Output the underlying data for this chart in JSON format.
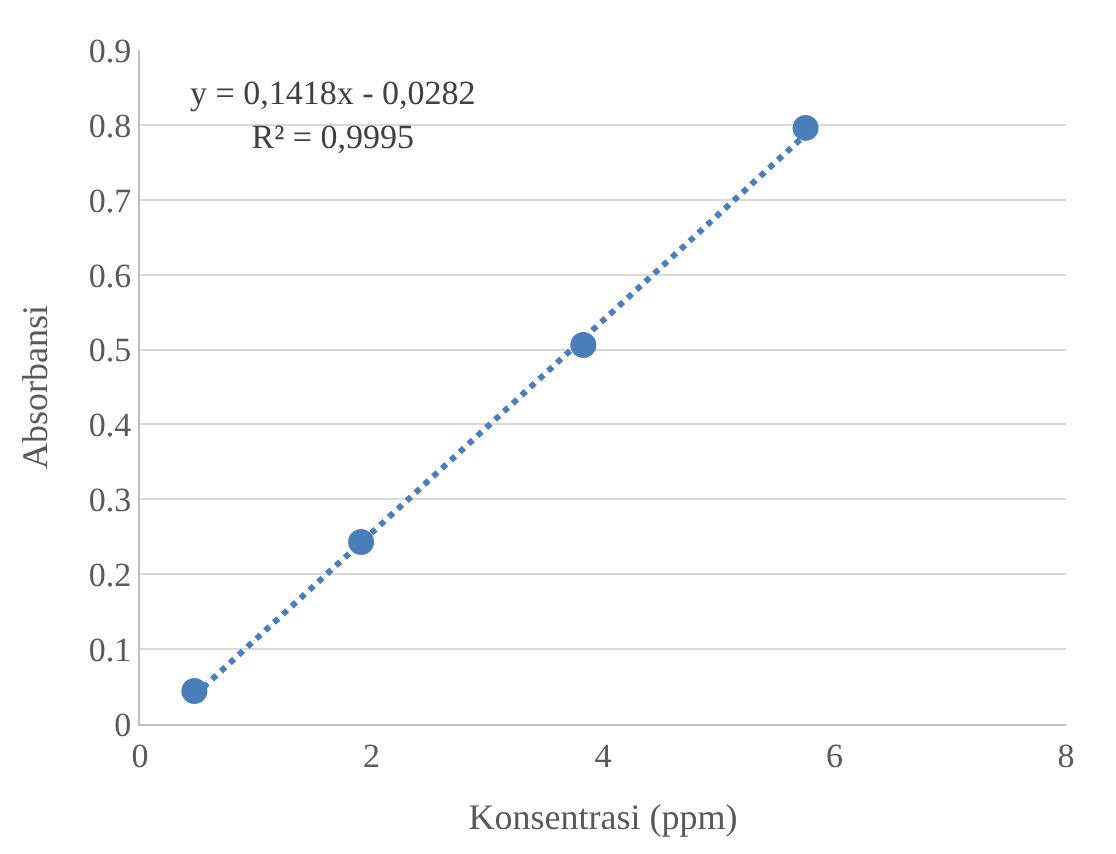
{
  "chart_data": {
    "type": "scatter",
    "xlabel": "Konsentrasi (ppm)",
    "ylabel": "Absorbansi",
    "annotations": [
      "y = 0,1418x - 0,0282\nR² = 0,9995"
    ],
    "series": [
      {
        "color": "#4a7ebb",
        "x": [
          0.47,
          1.91,
          3.83,
          5.75
        ],
        "values": [
          0.044,
          0.243,
          0.506,
          0.796
        ],
        "marker": "circle"
      },
      {
        "type": "line",
        "color": "#4a7ebb",
        "x": [
          0.47,
          5.75
        ],
        "values": [
          0.038,
          0.787
        ],
        "line_style": "dotted",
        "marker": "none"
      }
    ],
    "xlim": [
      0,
      8
    ],
    "xticks": [
      0,
      2,
      4,
      6,
      8
    ],
    "ylim": [
      0,
      0.9
    ],
    "yticks": [
      0,
      0.1,
      0.2,
      0.3,
      0.4,
      0.5,
      0.6,
      0.7,
      0.8,
      0.9
    ],
    "grid": "y"
  }
}
